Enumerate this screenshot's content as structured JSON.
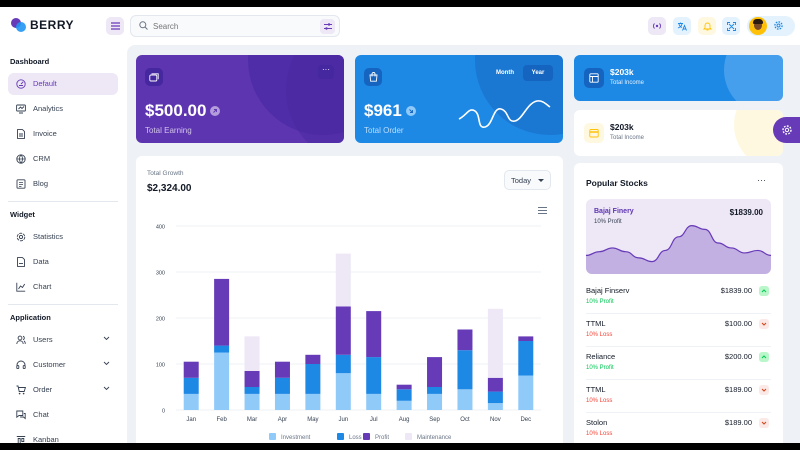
{
  "brand": {
    "name": "BERRY"
  },
  "search": {
    "placeholder": "Search"
  },
  "header_icons": [
    "menu-icon",
    "search-icon",
    "tune-icon",
    "broadcast-icon",
    "translate-icon",
    "bell-icon",
    "fullscreen-icon",
    "gear-icon"
  ],
  "colors": {
    "primary": "#673ab7",
    "primary_dark": "#5e35b1",
    "secondary": "#1e88e5",
    "success": "#00c853",
    "error": "#f44336",
    "warning": "#ffc107"
  },
  "sidebar": {
    "groups": [
      {
        "title": "Dashboard",
        "items": [
          {
            "label": "Default",
            "icon": "dashboard-icon",
            "active": true
          },
          {
            "label": "Analytics",
            "icon": "device-analytics-icon"
          },
          {
            "label": "Invoice",
            "icon": "invoice-icon"
          },
          {
            "label": "CRM",
            "icon": "crm-icon"
          },
          {
            "label": "Blog",
            "icon": "blog-icon"
          }
        ]
      },
      {
        "title": "Widget",
        "items": [
          {
            "label": "Statistics",
            "icon": "statistics-icon"
          },
          {
            "label": "Data",
            "icon": "data-icon"
          },
          {
            "label": "Chart",
            "icon": "chart-icon"
          }
        ]
      },
      {
        "title": "Application",
        "items": [
          {
            "label": "Users",
            "icon": "users-icon",
            "chevron": true
          },
          {
            "label": "Customer",
            "icon": "customer-icon",
            "chevron": true
          },
          {
            "label": "Order",
            "icon": "order-icon",
            "chevron": true
          },
          {
            "label": "Chat",
            "icon": "chat-icon"
          },
          {
            "label": "Kanban",
            "icon": "kanban-icon"
          }
        ]
      }
    ]
  },
  "earning": {
    "value": "$500.00",
    "label": "Total Earning",
    "more": "···"
  },
  "order": {
    "value": "$961",
    "label": "Total Order",
    "month_label": "Month",
    "year_label": "Year",
    "selected": "Year"
  },
  "income_cards": [
    {
      "value": "$203k",
      "label": "Total Income"
    },
    {
      "value": "$203k",
      "label": "Total Income"
    }
  ],
  "growth": {
    "label": "Total Growth",
    "total": "$2,324.00",
    "period": "Today"
  },
  "chart_data": {
    "type": "bar",
    "stacked": true,
    "categories": [
      "Jan",
      "Feb",
      "Mar",
      "Apr",
      "May",
      "Jun",
      "Jul",
      "Aug",
      "Sep",
      "Oct",
      "Nov",
      "Dec"
    ],
    "series": [
      {
        "name": "Investment",
        "color": "#90caf9",
        "values": [
          35,
          125,
          35,
          35,
          35,
          80,
          35,
          20,
          35,
          45,
          15,
          75
        ]
      },
      {
        "name": "Loss",
        "color": "#1e88e5",
        "values": [
          35,
          15,
          15,
          35,
          65,
          40,
          80,
          25,
          15,
          85,
          25,
          75
        ]
      },
      {
        "name": "Profit",
        "color": "#673ab7",
        "values": [
          35,
          145,
          35,
          35,
          20,
          105,
          100,
          10,
          65,
          45,
          30,
          10
        ]
      },
      {
        "name": "Maintenance",
        "color": "#ede7f6",
        "values": [
          0,
          0,
          75,
          0,
          0,
          115,
          0,
          0,
          0,
          0,
          150,
          0
        ]
      }
    ],
    "yticks": [
      0,
      100,
      200,
      300,
      400
    ],
    "ylim": [
      0,
      400
    ],
    "legend_position": "bottom"
  },
  "stocks": {
    "title": "Popular Stocks",
    "more": "···",
    "featured": {
      "name": "Bajaj Finery",
      "sub": "10% Profit",
      "value": "$1839.00"
    },
    "featured_curve": [
      30,
      36,
      42,
      36,
      26,
      20,
      38,
      60,
      78,
      72,
      50,
      42,
      34,
      38,
      30
    ],
    "rows": [
      {
        "name": "Bajaj Finserv",
        "sub": "10% Profit",
        "value": "$1839.00",
        "trend": "up"
      },
      {
        "name": "TTML",
        "sub": "10% Loss",
        "value": "$100.00",
        "trend": "down"
      },
      {
        "name": "Reliance",
        "sub": "10% Profit",
        "value": "$200.00",
        "trend": "up"
      },
      {
        "name": "TTML",
        "sub": "10% Loss",
        "value": "$189.00",
        "trend": "down"
      },
      {
        "name": "Stolon",
        "sub": "10% Loss",
        "value": "$189.00",
        "trend": "down"
      }
    ]
  }
}
